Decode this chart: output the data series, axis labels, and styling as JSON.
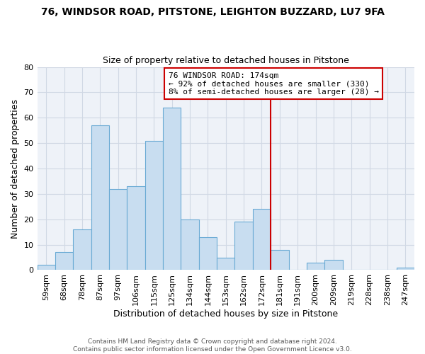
{
  "title1": "76, WINDSOR ROAD, PITSTONE, LEIGHTON BUZZARD, LU7 9FA",
  "title2": "Size of property relative to detached houses in Pitstone",
  "xlabel": "Distribution of detached houses by size in Pitstone",
  "ylabel": "Number of detached properties",
  "bin_labels": [
    "59sqm",
    "68sqm",
    "78sqm",
    "87sqm",
    "97sqm",
    "106sqm",
    "115sqm",
    "125sqm",
    "134sqm",
    "144sqm",
    "153sqm",
    "162sqm",
    "172sqm",
    "181sqm",
    "191sqm",
    "200sqm",
    "209sqm",
    "219sqm",
    "228sqm",
    "238sqm",
    "247sqm"
  ],
  "bar_heights": [
    2,
    7,
    16,
    57,
    32,
    33,
    51,
    64,
    20,
    13,
    5,
    19,
    24,
    8,
    0,
    3,
    4,
    0,
    0,
    0,
    1
  ],
  "bar_color": "#c8ddf0",
  "bar_edgecolor": "#6aaad4",
  "vline_x_index": 12,
  "vline_color": "#cc0000",
  "annotation_text": "76 WINDSOR ROAD: 174sqm\n← 92% of detached houses are smaller (330)\n8% of semi-detached houses are larger (28) →",
  "annotation_box_edgecolor": "#cc0000",
  "ylim": [
    0,
    80
  ],
  "yticks": [
    0,
    10,
    20,
    30,
    40,
    50,
    60,
    70,
    80
  ],
  "footer1": "Contains HM Land Registry data © Crown copyright and database right 2024.",
  "footer2": "Contains public sector information licensed under the Open Government Licence v3.0.",
  "num_bins": 21,
  "bg_color": "#eef2f8",
  "grid_color": "#d0d8e4"
}
